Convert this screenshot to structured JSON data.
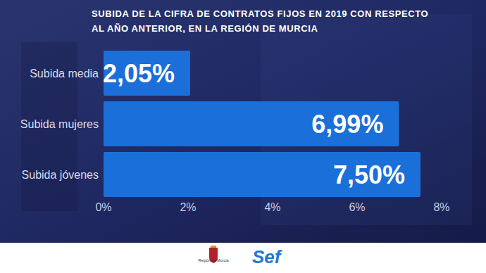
{
  "chart_data": {
    "type": "bar",
    "orientation": "horizontal",
    "title": "SUBIDA DE LA CIFRA DE CONTRATOS FIJOS EN 2019 CON RESPECTO AL AÑO ANTERIOR, EN LA REGIÓN DE MURCIA",
    "categories": [
      "Subida media",
      "Subida mujeres",
      "Subida jóvenes"
    ],
    "values": [
      2.05,
      6.99,
      7.5
    ],
    "value_labels": [
      "2,05%",
      "6,99%",
      "7,50%"
    ],
    "color": "#1b6fd8",
    "xlim": [
      0,
      8
    ],
    "xticks": [
      {
        "value": 0,
        "label": "0%"
      },
      {
        "value": 2,
        "label": "2%"
      },
      {
        "value": 4,
        "label": "4%"
      },
      {
        "value": 6,
        "label": "6%"
      },
      {
        "value": 8,
        "label": "8%"
      }
    ],
    "grid": false,
    "data_labels": true
  },
  "footer": {
    "region": "Región de Murcia",
    "brand": "Sef"
  }
}
